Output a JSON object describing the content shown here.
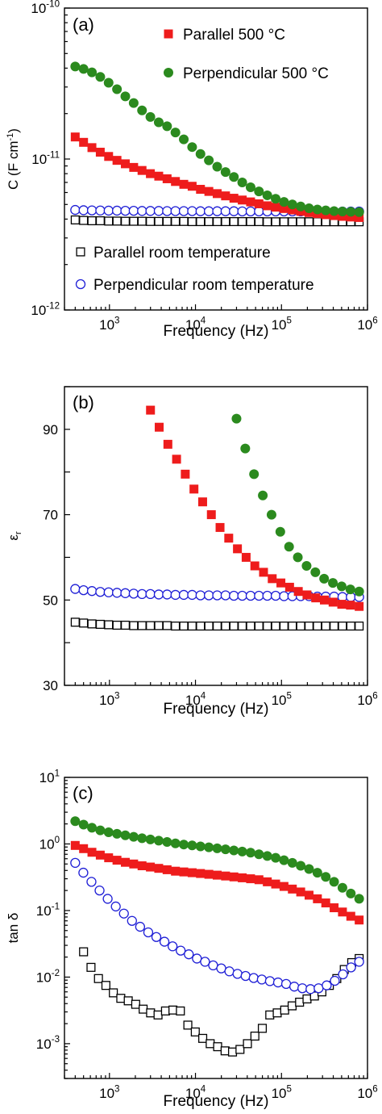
{
  "figure": {
    "colors": {
      "parallel_500": "#ee1c1c",
      "perpendicular_500": "#2b8a1e",
      "parallel_rt": "#000000",
      "perpendicular_rt": "#1f1fd6"
    }
  },
  "chart_data": [
    {
      "panel_label": "(a)",
      "type": "scatter",
      "xlabel": "Frequency (Hz)",
      "ylabel": "C (F cm",
      "ylabel_sup": "-1",
      "ylabel_end": ")",
      "xscale": "log",
      "yscale": "log",
      "xlim": [
        300,
        1000000
      ],
      "ylim": [
        1e-12,
        1e-10
      ],
      "xticks": [
        {
          "value": 1000,
          "base": "10",
          "exp": "3"
        },
        {
          "value": 10000,
          "base": "10",
          "exp": "4"
        },
        {
          "value": 100000,
          "base": "10",
          "exp": "5"
        },
        {
          "value": 1000000,
          "base": "10",
          "exp": "6"
        }
      ],
      "yticks": [
        {
          "value": 1e-12,
          "base": "10",
          "exp": "-12"
        },
        {
          "value": 1e-11,
          "base": "10",
          "exp": "-11"
        },
        {
          "value": 1e-10,
          "base": "10",
          "exp": "-10"
        }
      ],
      "legend_top": [
        "Parallel 500 °C",
        "Perpendicular 500 °C"
      ],
      "legend_bottom": [
        "Parallel room temperature",
        "Perpendicular room temperature"
      ],
      "series": [
        {
          "name": "Parallel 500 °C",
          "marker": "square-filled",
          "color": "#ee1c1c",
          "x_start": 400,
          "x_end": 800000,
          "values": [
            1.4e-11,
            1.29e-11,
            1.19e-11,
            1.11e-11,
            1.04e-11,
            9.8e-12,
            9.3e-12,
            8.8e-12,
            8.4e-12,
            8e-12,
            7.7e-12,
            7.4e-12,
            7.1e-12,
            6.8e-12,
            6.6e-12,
            6.3e-12,
            6.1e-12,
            5.9e-12,
            5.7e-12,
            5.5e-12,
            5.35e-12,
            5.2e-12,
            5.05e-12,
            4.9e-12,
            4.8e-12,
            4.7e-12,
            4.6e-12,
            4.5e-12,
            4.42e-12,
            4.35e-12,
            4.28e-12,
            4.22e-12,
            4.17e-12,
            4.13e-12,
            4.1e-12
          ]
        },
        {
          "name": "Perpendicular 500 °C",
          "marker": "circle-filled",
          "color": "#2b8a1e",
          "x_start": 400,
          "x_end": 800000,
          "values": [
            4.1e-11,
            3.95e-11,
            3.75e-11,
            3.5e-11,
            3.2e-11,
            2.9e-11,
            2.6e-11,
            2.35e-11,
            2.1e-11,
            1.9e-11,
            1.75e-11,
            1.65e-11,
            1.5e-11,
            1.35e-11,
            1.2e-11,
            1.08e-11,
            9.8e-12,
            8.9e-12,
            8.2e-12,
            7.6e-12,
            7e-12,
            6.5e-12,
            6.1e-12,
            5.75e-12,
            5.45e-12,
            5.2e-12,
            5e-12,
            4.85e-12,
            4.72e-12,
            4.63e-12,
            4.57e-12,
            4.52e-12,
            4.49e-12,
            4.47e-12,
            4.45e-12
          ]
        },
        {
          "name": "Parallel room temperature",
          "marker": "square-open",
          "color": "#000000",
          "x_start": 400,
          "x_end": 800000,
          "values": [
            3.95e-12,
            3.92e-12,
            3.9e-12,
            3.9e-12,
            3.88e-12,
            3.88e-12,
            3.87e-12,
            3.87e-12,
            3.87e-12,
            3.86e-12,
            3.86e-12,
            3.86e-12,
            3.86e-12,
            3.86e-12,
            3.85e-12,
            3.85e-12,
            3.85e-12,
            3.85e-12,
            3.85e-12,
            3.85e-12,
            3.85e-12,
            3.85e-12,
            3.85e-12,
            3.84e-12,
            3.84e-12,
            3.84e-12,
            3.84e-12,
            3.84e-12,
            3.84e-12,
            3.84e-12,
            3.84e-12,
            3.84e-12,
            3.84e-12,
            3.84e-12,
            3.84e-12
          ]
        },
        {
          "name": "Perpendicular room temperature",
          "marker": "circle-open",
          "color": "#1f1fd6",
          "x_start": 400,
          "x_end": 800000,
          "values": [
            4.6e-12,
            4.58e-12,
            4.57e-12,
            4.56e-12,
            4.55e-12,
            4.55e-12,
            4.54e-12,
            4.54e-12,
            4.53e-12,
            4.53e-12,
            4.53e-12,
            4.52e-12,
            4.52e-12,
            4.52e-12,
            4.52e-12,
            4.51e-12,
            4.51e-12,
            4.51e-12,
            4.51e-12,
            4.51e-12,
            4.5e-12,
            4.5e-12,
            4.5e-12,
            4.5e-12,
            4.5e-12,
            4.5e-12,
            4.5e-12,
            4.49e-12,
            4.49e-12,
            4.49e-12,
            4.49e-12,
            4.49e-12,
            4.49e-12,
            4.49e-12,
            4.49e-12
          ]
        }
      ]
    },
    {
      "panel_label": "(b)",
      "type": "scatter",
      "xlabel": "Frequency (Hz)",
      "ylabel": "ε",
      "ylabel_sub": "r",
      "xscale": "log",
      "yscale": "linear",
      "xlim": [
        300,
        1000000
      ],
      "ylim": [
        30,
        100
      ],
      "xticks": [
        {
          "value": 1000,
          "base": "10",
          "exp": "3"
        },
        {
          "value": 10000,
          "base": "10",
          "exp": "4"
        },
        {
          "value": 100000,
          "base": "10",
          "exp": "5"
        },
        {
          "value": 1000000,
          "base": "10",
          "exp": "6"
        }
      ],
      "yticks": [
        {
          "value": 30,
          "label": "30"
        },
        {
          "value": 50,
          "label": "50"
        },
        {
          "value": 70,
          "label": "70"
        },
        {
          "value": 90,
          "label": "90"
        }
      ],
      "series": [
        {
          "name": "Parallel 500 °C",
          "marker": "square-filled",
          "color": "#ee1c1c",
          "x_start": 3000,
          "x_end": 800000,
          "values": [
            94.5,
            90.5,
            86.5,
            83.0,
            79.5,
            76.0,
            73.0,
            70.0,
            67.0,
            64.5,
            62.0,
            60.0,
            58.0,
            56.5,
            55.0,
            54.0,
            53.0,
            52.0,
            51.2,
            50.5,
            50.0,
            49.5,
            49.0,
            48.8,
            48.5
          ]
        },
        {
          "name": "Perpendicular 500 °C",
          "marker": "circle-filled",
          "color": "#2b8a1e",
          "x_start": 30000,
          "x_end": 800000,
          "values": [
            92.5,
            85.5,
            79.5,
            74.5,
            70.0,
            66.0,
            62.5,
            60.0,
            58.0,
            56.5,
            55.0,
            54.0,
            53.2,
            52.5,
            52.0
          ]
        },
        {
          "name": "Parallel room temperature",
          "marker": "square-open",
          "color": "#000000",
          "x_start": 400,
          "x_end": 800000,
          "values": [
            44.8,
            44.6,
            44.4,
            44.3,
            44.2,
            44.1,
            44.1,
            44.0,
            44.0,
            44.0,
            44.0,
            44.0,
            43.9,
            43.9,
            43.9,
            43.9,
            43.9,
            43.9,
            43.9,
            43.9,
            43.9,
            43.9,
            43.9,
            43.9,
            43.9,
            43.9,
            43.9,
            43.9,
            43.9,
            43.9,
            43.9,
            43.9,
            43.9,
            43.9,
            43.9
          ]
        },
        {
          "name": "Perpendicular room temperature",
          "marker": "circle-open",
          "color": "#1f1fd6",
          "x_start": 400,
          "x_end": 800000,
          "values": [
            52.6,
            52.3,
            52.1,
            51.9,
            51.8,
            51.7,
            51.6,
            51.5,
            51.4,
            51.4,
            51.3,
            51.3,
            51.2,
            51.2,
            51.2,
            51.1,
            51.1,
            51.1,
            51.1,
            51.0,
            51.0,
            51.0,
            51.0,
            51.0,
            51.0,
            50.9,
            50.9,
            50.9,
            50.9,
            50.8,
            50.8,
            50.8,
            50.7,
            50.7,
            50.7
          ]
        }
      ]
    },
    {
      "panel_label": "(c)",
      "type": "scatter",
      "xlabel": "Frequency (Hz)",
      "ylabel": "tan δ",
      "xscale": "log",
      "yscale": "log",
      "xlim": [
        300,
        1000000
      ],
      "ylim": [
        0.0003,
        10
      ],
      "xticks": [
        {
          "value": 1000,
          "base": "10",
          "exp": "3"
        },
        {
          "value": 10000,
          "base": "10",
          "exp": "4"
        },
        {
          "value": 100000,
          "base": "10",
          "exp": "5"
        },
        {
          "value": 1000000,
          "base": "10",
          "exp": "6"
        }
      ],
      "yticks": [
        {
          "value": 0.001,
          "base": "10",
          "exp": "-3"
        },
        {
          "value": 0.01,
          "base": "10",
          "exp": "-2"
        },
        {
          "value": 0.1,
          "base": "10",
          "exp": "-1"
        },
        {
          "value": 1,
          "base": "10",
          "exp": "0"
        },
        {
          "value": 10,
          "base": "10",
          "exp": "1"
        }
      ],
      "series": [
        {
          "name": "Parallel 500 °C",
          "marker": "square-filled",
          "color": "#ee1c1c",
          "x_start": 400,
          "x_end": 800000,
          "values": [
            0.95,
            0.85,
            0.75,
            0.68,
            0.62,
            0.57,
            0.53,
            0.5,
            0.47,
            0.45,
            0.43,
            0.41,
            0.39,
            0.38,
            0.37,
            0.36,
            0.35,
            0.34,
            0.33,
            0.32,
            0.31,
            0.3,
            0.29,
            0.27,
            0.25,
            0.23,
            0.21,
            0.19,
            0.17,
            0.15,
            0.13,
            0.11,
            0.095,
            0.082,
            0.072
          ]
        },
        {
          "name": "Perpendicular 500 °C",
          "marker": "circle-filled",
          "color": "#2b8a1e",
          "x_start": 400,
          "x_end": 800000,
          "values": [
            2.2,
            1.95,
            1.75,
            1.6,
            1.5,
            1.42,
            1.35,
            1.28,
            1.22,
            1.17,
            1.12,
            1.07,
            1.02,
            0.98,
            0.95,
            0.92,
            0.89,
            0.86,
            0.83,
            0.8,
            0.77,
            0.74,
            0.7,
            0.66,
            0.62,
            0.57,
            0.52,
            0.47,
            0.42,
            0.37,
            0.32,
            0.27,
            0.22,
            0.18,
            0.15
          ]
        },
        {
          "name": "Parallel room temperature",
          "marker": "square-open",
          "color": "#000000",
          "x_start": 500,
          "x_end": 800000,
          "values": [
            0.024,
            0.014,
            0.0095,
            0.0075,
            0.0058,
            0.0048,
            0.0044,
            0.0039,
            0.0033,
            0.0029,
            0.0027,
            0.0031,
            0.0032,
            0.0031,
            0.0019,
            0.0015,
            0.0012,
            0.001,
            0.0009,
            0.00078,
            0.00075,
            0.00082,
            0.001,
            0.0013,
            0.0017,
            0.0027,
            0.0029,
            0.0032,
            0.0037,
            0.0042,
            0.0047,
            0.0052,
            0.006,
            0.0075,
            0.0095,
            0.013,
            0.0165,
            0.019
          ]
        },
        {
          "name": "Perpendicular room temperature",
          "marker": "circle-open",
          "color": "#1f1fd6",
          "x_start": 400,
          "x_end": 800000,
          "values": [
            0.52,
            0.37,
            0.27,
            0.2,
            0.15,
            0.115,
            0.09,
            0.07,
            0.057,
            0.047,
            0.04,
            0.034,
            0.029,
            0.025,
            0.022,
            0.019,
            0.017,
            0.015,
            0.0135,
            0.0122,
            0.0112,
            0.0104,
            0.0097,
            0.0092,
            0.0087,
            0.0083,
            0.0079,
            0.0072,
            0.0068,
            0.0066,
            0.0068,
            0.0075,
            0.0088,
            0.011,
            0.014,
            0.017
          ]
        }
      ]
    }
  ]
}
